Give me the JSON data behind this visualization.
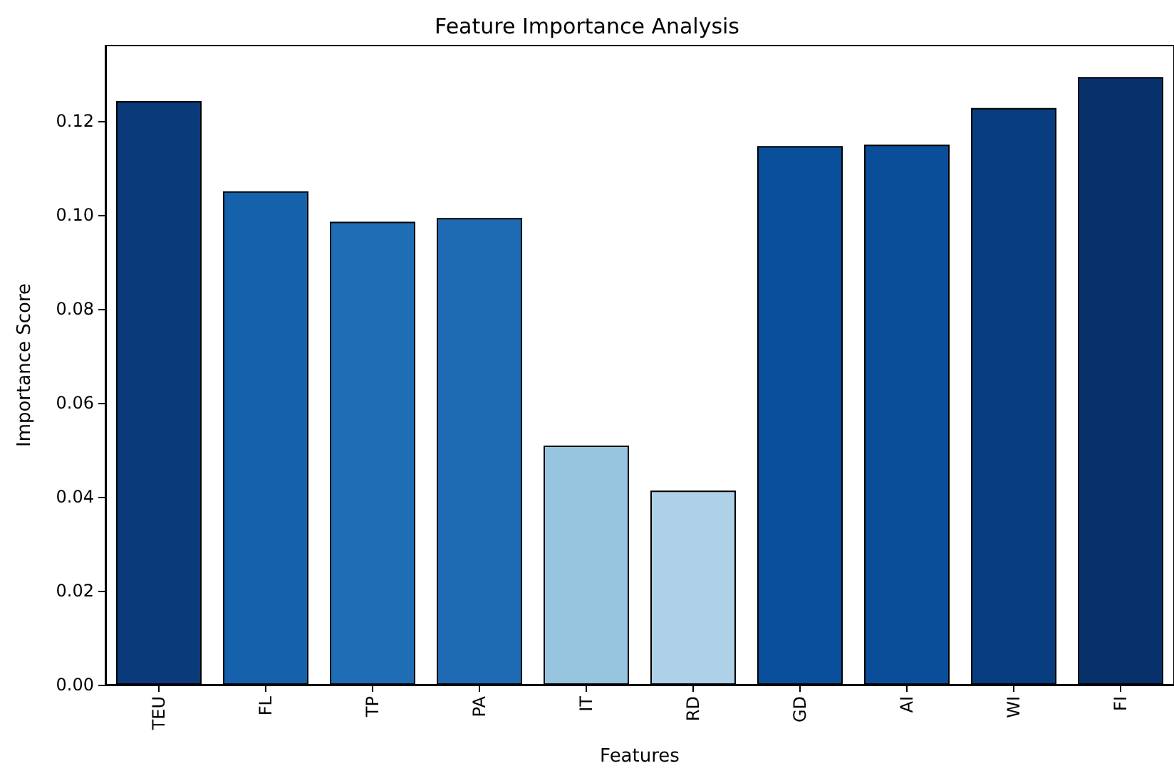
{
  "chart_data": {
    "type": "bar",
    "title": "Feature Importance Analysis",
    "xlabel": "Features",
    "ylabel": "Importance Score",
    "categories": [
      "TEU",
      "FL",
      "TP",
      "PA",
      "IT",
      "RD",
      "GD",
      "AI",
      "WI",
      "FI"
    ],
    "values": [
      0.1242,
      0.105,
      0.0985,
      0.0993,
      0.0509,
      0.0413,
      0.1146,
      0.1149,
      0.1227,
      0.1293
    ],
    "colors": [
      "#0a3a7a",
      "#1561ab",
      "#1f6db4",
      "#1e6bb3",
      "#97c4df",
      "#aed1e7",
      "#0a4f9b",
      "#0a4e9a",
      "#083d7f",
      "#08306b"
    ],
    "ylim": [
      0,
      0.136
    ],
    "yticks": [
      {
        "value": 0,
        "label": "0.00"
      },
      {
        "value": 0.02,
        "label": "0.02"
      },
      {
        "value": 0.04,
        "label": "0.04"
      },
      {
        "value": 0.06,
        "label": "0.06"
      },
      {
        "value": 0.08,
        "label": "0.08"
      },
      {
        "value": 0.1,
        "label": "0.10"
      },
      {
        "value": 0.12,
        "label": "0.12"
      }
    ],
    "grid": false
  }
}
